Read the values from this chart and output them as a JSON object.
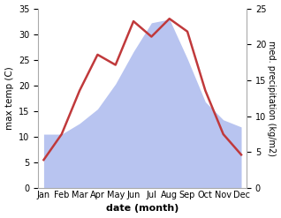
{
  "months": [
    "Jan",
    "Feb",
    "Mar",
    "Apr",
    "May",
    "Jun",
    "Jul",
    "Aug",
    "Sep",
    "Oct",
    "Nov",
    "Dec"
  ],
  "temperature": [
    5.5,
    10.5,
    19.0,
    26.0,
    24.0,
    32.5,
    29.5,
    33.0,
    30.5,
    19.0,
    10.5,
    6.5
  ],
  "precipitation": [
    7.5,
    7.5,
    9.0,
    11.0,
    14.5,
    19.0,
    23.0,
    23.5,
    18.0,
    12.0,
    9.5,
    8.5
  ],
  "temp_color": "#c0393b",
  "precip_fill_color": "#b8c4f0",
  "temp_ylim": [
    0,
    35
  ],
  "precip_ylim": [
    0,
    25
  ],
  "xlabel": "date (month)",
  "ylabel_left": "max temp (C)",
  "ylabel_right": "med. precipitation (kg/m2)",
  "fig_width": 3.18,
  "fig_height": 2.47,
  "dpi": 100
}
